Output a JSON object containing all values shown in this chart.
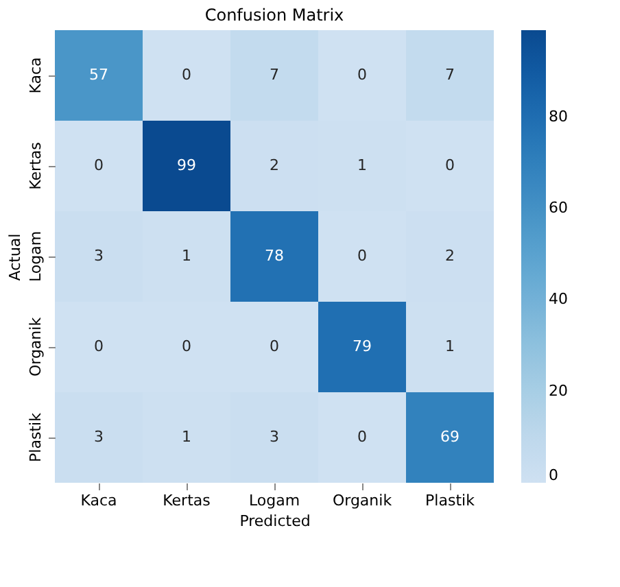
{
  "chart_data": {
    "type": "heatmap",
    "title": "Confusion Matrix",
    "xlabel": "Predicted",
    "ylabel": "Actual",
    "categories": [
      "Kaca",
      "Kertas",
      "Logam",
      "Organik",
      "Plastik"
    ],
    "y_categories": [
      "Kaca",
      "Kertas",
      "Logam",
      "Organik",
      "Plastik"
    ],
    "cells": [
      [
        57,
        0,
        7,
        0,
        7
      ],
      [
        0,
        99,
        2,
        1,
        0
      ],
      [
        3,
        1,
        78,
        0,
        2
      ],
      [
        0,
        0,
        0,
        79,
        1
      ],
      [
        3,
        1,
        3,
        0,
        69
      ]
    ],
    "data_labels": true,
    "clim": [
      0,
      99
    ],
    "cticks": [
      0,
      20,
      40,
      60,
      80
    ]
  }
}
